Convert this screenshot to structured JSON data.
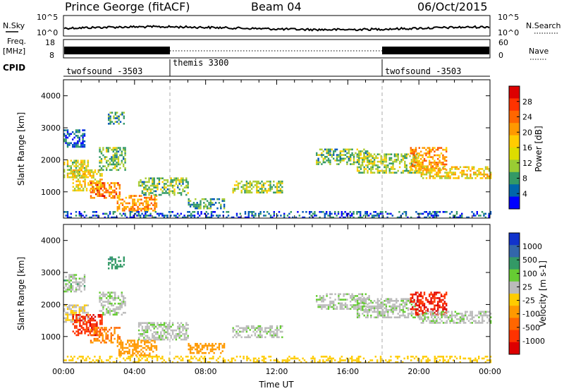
{
  "header": {
    "station": "Prince George (fitACF)",
    "beam": "Beam 04",
    "date": "06/Oct/2015"
  },
  "strips": {
    "nsky_label": "N.Sky",
    "nsearch_label": "N.Search",
    "freq_label": "Freq.",
    "freq_unit": "[MHz]",
    "nave_label": "Nave",
    "noise_ticks_left": [
      "10^5",
      "10^0"
    ],
    "noise_ticks_right": [
      "10^5",
      "10^0"
    ],
    "freq_ticks": [
      "18",
      "8"
    ],
    "nave_ticks": [
      "60",
      "0"
    ],
    "cpid_label": "CPID",
    "cpid_segments": [
      {
        "name": "twofsound -3503",
        "start_h": 0,
        "end_h": 6
      },
      {
        "name": "themis 3300",
        "start_h": 6,
        "end_h": 18
      },
      {
        "name": "twofsound -3503",
        "start_h": 18,
        "end_h": 24
      }
    ]
  },
  "chart_data": [
    {
      "type": "heatmap",
      "panel": "power",
      "ylabel": "Slant Range [km]",
      "xlim": [
        0,
        24
      ],
      "ylim": [
        180,
        4500
      ],
      "yticks": [
        1000,
        2000,
        3000,
        4000
      ],
      "colorbar": {
        "label": "Power [dB]",
        "ticks": [
          "28",
          "24",
          "20",
          "16",
          "12",
          "8",
          "4"
        ],
        "colors": [
          "#dd0000",
          "#ff3300",
          "#ff6600",
          "#ff9900",
          "#ffcc00",
          "#dddd00",
          "#99cc33",
          "#339966",
          "#0066aa",
          "#0000ff"
        ]
      },
      "echo_regions": [
        {
          "t0": 0.0,
          "t1": 1.4,
          "r0": 1450,
          "r1": 2000,
          "v": 16
        },
        {
          "t0": 0.0,
          "t1": 1.2,
          "r0": 2400,
          "r1": 2950,
          "v": 6
        },
        {
          "t0": 0.5,
          "t1": 2.2,
          "r0": 1050,
          "r1": 1700,
          "v": 18
        },
        {
          "t0": 1.5,
          "t1": 3.2,
          "r0": 800,
          "r1": 1300,
          "v": 24
        },
        {
          "t0": 2.0,
          "t1": 3.5,
          "r0": 1700,
          "r1": 2400,
          "v": 12
        },
        {
          "t0": 2.5,
          "t1": 3.4,
          "r0": 3100,
          "r1": 3500,
          "v": 10
        },
        {
          "t0": 3.0,
          "t1": 5.2,
          "r0": 400,
          "r1": 900,
          "v": 22
        },
        {
          "t0": 4.2,
          "t1": 7.0,
          "r0": 900,
          "r1": 1450,
          "v": 12
        },
        {
          "t0": 7.0,
          "t1": 9.0,
          "r0": 500,
          "r1": 800,
          "v": 10
        },
        {
          "t0": 9.5,
          "t1": 12.3,
          "r0": 950,
          "r1": 1350,
          "v": 14
        },
        {
          "t0": 14.2,
          "t1": 17.2,
          "r0": 1850,
          "r1": 2350,
          "v": 12
        },
        {
          "t0": 16.5,
          "t1": 20.0,
          "r0": 1600,
          "r1": 2200,
          "v": 14
        },
        {
          "t0": 19.5,
          "t1": 21.5,
          "r0": 1700,
          "r1": 2400,
          "v": 22
        },
        {
          "t0": 20.0,
          "t1": 24.0,
          "r0": 1400,
          "r1": 1800,
          "v": 18
        },
        {
          "t0": 0.0,
          "t1": 24.0,
          "r0": 180,
          "r1": 400,
          "v": 6
        }
      ]
    },
    {
      "type": "heatmap",
      "panel": "velocity",
      "xlabel": "Time UT",
      "ylabel": "Slant Range [km]",
      "xlim": [
        0,
        24
      ],
      "ylim": [
        180,
        4500
      ],
      "xticks": [
        "00:00",
        "04:00",
        "08:00",
        "12:00",
        "16:00",
        "20:00",
        "00:00"
      ],
      "yticks": [
        1000,
        2000,
        3000,
        4000
      ],
      "colorbar": {
        "label": "Velocity [m s-1]",
        "ticks": [
          "1000",
          "500",
          "100",
          "25",
          "-25",
          "-100",
          "-500",
          "-1000"
        ],
        "colors": [
          "#1133cc",
          "#3366aa",
          "#339966",
          "#66cc33",
          "#bbbbbb",
          "#ffcc00",
          "#ff9900",
          "#ff6600",
          "#ff3300",
          "#dd0000"
        ]
      },
      "echo_regions": [
        {
          "t0": 0.0,
          "t1": 1.4,
          "r0": 1450,
          "r1": 2000,
          "v": -20
        },
        {
          "t0": 0.0,
          "t1": 1.2,
          "r0": 2400,
          "r1": 2950,
          "v": 10
        },
        {
          "t0": 0.5,
          "t1": 2.2,
          "r0": 1050,
          "r1": 1700,
          "v": -700
        },
        {
          "t0": 1.5,
          "t1": 3.2,
          "r0": 800,
          "r1": 1300,
          "v": -300
        },
        {
          "t0": 2.0,
          "t1": 3.5,
          "r0": 1700,
          "r1": 2400,
          "v": 0
        },
        {
          "t0": 2.5,
          "t1": 3.4,
          "r0": 3100,
          "r1": 3500,
          "v": 80
        },
        {
          "t0": 3.0,
          "t1": 5.2,
          "r0": 400,
          "r1": 900,
          "v": -200
        },
        {
          "t0": 4.2,
          "t1": 7.0,
          "r0": 900,
          "r1": 1450,
          "v": 0
        },
        {
          "t0": 7.0,
          "t1": 9.0,
          "r0": 500,
          "r1": 800,
          "v": -150
        },
        {
          "t0": 9.5,
          "t1": 12.3,
          "r0": 950,
          "r1": 1350,
          "v": 0
        },
        {
          "t0": 14.2,
          "t1": 17.2,
          "r0": 1850,
          "r1": 2350,
          "v": 0
        },
        {
          "t0": 16.5,
          "t1": 20.0,
          "r0": 1600,
          "r1": 2200,
          "v": 0
        },
        {
          "t0": 19.5,
          "t1": 21.5,
          "r0": 1700,
          "r1": 2400,
          "v": -800
        },
        {
          "t0": 20.0,
          "t1": 24.0,
          "r0": 1400,
          "r1": 1800,
          "v": 0
        },
        {
          "t0": 0.0,
          "t1": 24.0,
          "r0": 180,
          "r1": 400,
          "v": -60
        }
      ]
    }
  ]
}
